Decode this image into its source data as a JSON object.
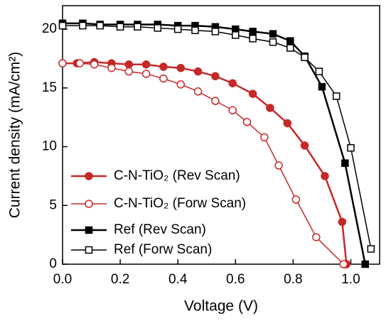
{
  "chart_data": {
    "type": "line",
    "x_label": "Voltage (V)",
    "y_label": "Current density (mA/cm²)",
    "xlim": [
      0,
      1.1
    ],
    "ylim": [
      0,
      22
    ],
    "xticks": [
      {
        "value": 0,
        "label": "0.0"
      },
      0.2,
      0.4,
      0.6,
      0.8,
      {
        "value": 1,
        "label": "1.0"
      }
    ],
    "yticks": [
      0,
      5,
      10,
      15,
      20
    ],
    "legend": "lower left",
    "series": [
      {
        "name": "C-N-TiO₂ (Rev Scan)",
        "color": "#c62828",
        "marker": "filled-circle",
        "x": [
          0,
          0.05,
          0.11,
          0.17,
          0.23,
          0.29,
          0.35,
          0.41,
          0.47,
          0.53,
          0.59,
          0.66,
          0.72,
          0.78,
          0.84,
          0.91,
          0.97,
          0.985
        ],
        "values": [
          17.1,
          17.1,
          17.2,
          17.1,
          17.0,
          17.0,
          16.8,
          16.7,
          16.4,
          16.0,
          15.4,
          14.5,
          13.3,
          12.0,
          10.1,
          7.5,
          3.6,
          0
        ]
      },
      {
        "name": "C-N-TiO₂ (Forw Scan)",
        "color": "#c62828",
        "marker": "open-circle",
        "x": [
          0,
          0.06,
          0.11,
          0.17,
          0.23,
          0.29,
          0.35,
          0.41,
          0.47,
          0.53,
          0.59,
          0.64,
          0.7,
          0.75,
          0.81,
          0.88,
          0.975
        ],
        "values": [
          17.1,
          17.1,
          17.0,
          16.7,
          16.4,
          16.2,
          15.8,
          15.3,
          14.7,
          13.9,
          13.1,
          12.1,
          10.8,
          8.4,
          5.5,
          2.3,
          0
        ]
      },
      {
        "name": "Ref (Rev Scan)",
        "color": "#000000",
        "marker": "filled-square",
        "x": [
          0,
          0.07,
          0.13,
          0.2,
          0.26,
          0.33,
          0.4,
          0.46,
          0.53,
          0.6,
          0.66,
          0.73,
          0.79,
          0.84,
          0.9,
          0.98,
          1.05
        ],
        "values": [
          20.5,
          20.5,
          20.4,
          20.4,
          20.4,
          20.4,
          20.3,
          20.3,
          20.2,
          20.0,
          19.8,
          19.6,
          19.0,
          17.7,
          15.1,
          8.6,
          0
        ]
      },
      {
        "name": "Ref (Forw Scan)",
        "color": "#000000",
        "marker": "open-square",
        "x": [
          0,
          0.07,
          0.13,
          0.2,
          0.26,
          0.33,
          0.4,
          0.46,
          0.53,
          0.6,
          0.66,
          0.73,
          0.79,
          0.84,
          0.89,
          0.95,
          1.0,
          1.07
        ],
        "values": [
          20.3,
          20.3,
          20.3,
          20.2,
          20.2,
          20.1,
          20.0,
          19.9,
          19.8,
          19.5,
          19.2,
          18.9,
          18.4,
          17.6,
          16.4,
          14.3,
          9.9,
          1.3
        ]
      }
    ]
  }
}
